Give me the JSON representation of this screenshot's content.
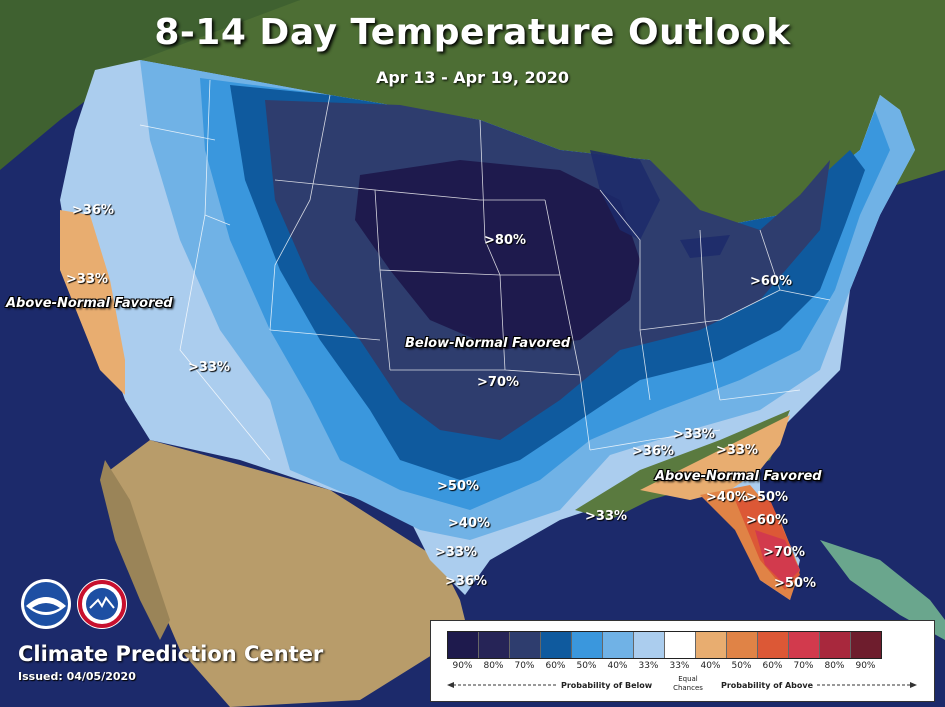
{
  "title": "8-14 Day Temperature Outlook",
  "subtitle": "Apr 13 - Apr 19, 2020",
  "labels": {
    "west_36": ">36%",
    "west_33a": ">33%",
    "above_west": "Above-Normal Favored",
    "sw_33": ">33%",
    "mid_80": ">80%",
    "below": "Below-Normal Favored",
    "mid_70": ">70%",
    "ne_60": ">60%",
    "s_50": ">50%",
    "s_40": ">40%",
    "s_33": ">33%",
    "s_36": ">36%",
    "se_36": ">36%",
    "se_33a": ">33%",
    "se_33b": ">33%",
    "gulf_33": ">33%",
    "above_se": "Above-Normal Favored",
    "fl_40": ">40%",
    "fl_50": ">50%",
    "fl_60": ">60%",
    "fl_70": ">70%",
    "fl_50b": ">50%"
  },
  "footer": {
    "org": "Climate Prediction Center",
    "issued": "Issued: 04/05/2020"
  },
  "legend": {
    "ticks": [
      "90%",
      "80%",
      "70%",
      "60%",
      "50%",
      "40%",
      "33%",
      "33%",
      "40%",
      "50%",
      "60%",
      "70%",
      "80%",
      "90%"
    ],
    "colors": [
      "#1e1a4d",
      "#262457",
      "#2e3d6e",
      "#0f5a9e",
      "#3a97dd",
      "#70b2e6",
      "#abcdee",
      "#ffffff",
      "#e8ad70",
      "#e08346",
      "#dc5836",
      "#d23a4d",
      "#a8283d",
      "#6e1d2d"
    ],
    "below_caption": "Probability of Below",
    "equal_caption": "Equal Chances",
    "above_caption": "Probability of Above"
  },
  "colors": {
    "ocean": "#1c2a6b",
    "land": "#4f6b3a"
  },
  "icons": [
    "noaa-logo-icon",
    "nws-logo-icon"
  ]
}
